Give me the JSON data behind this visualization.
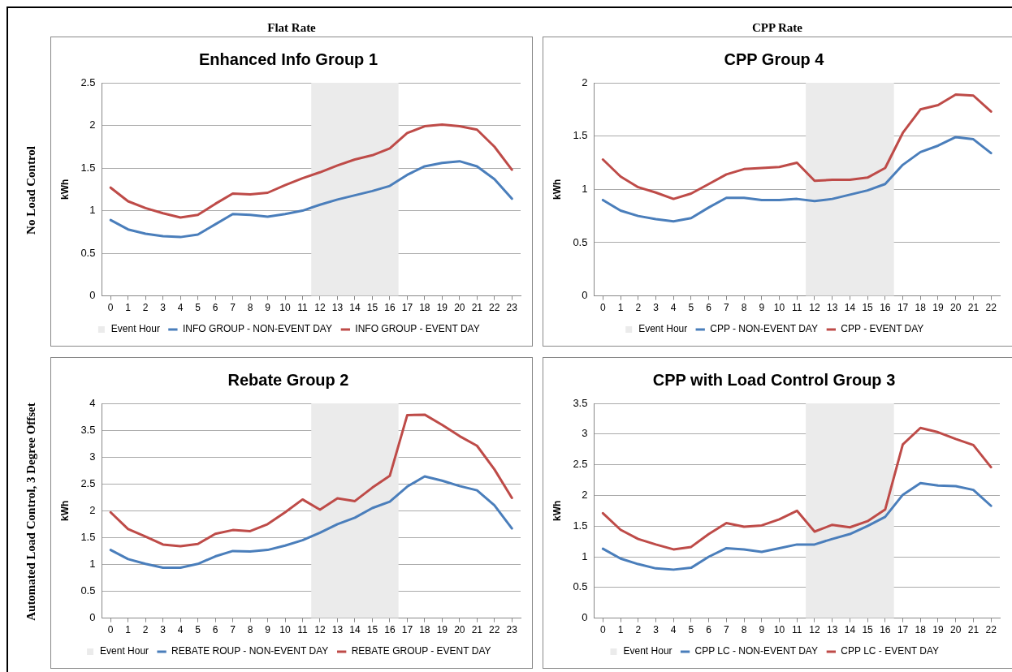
{
  "chart_data": [
    {
      "type": "line",
      "title": "Enhanced Info Group 1",
      "ylabel": "kWh",
      "annotations": [
        "Flat Rate",
        "No Load Control"
      ],
      "x": [
        0,
        1,
        2,
        3,
        4,
        5,
        6,
        7,
        8,
        9,
        10,
        11,
        12,
        13,
        14,
        15,
        16,
        17,
        18,
        19,
        20,
        21,
        22,
        23
      ],
      "xlim": [
        -0.5,
        23.5
      ],
      "xticks": [
        0,
        1,
        2,
        3,
        4,
        5,
        6,
        7,
        8,
        9,
        10,
        11,
        12,
        13,
        14,
        15,
        16,
        17,
        18,
        19,
        20,
        21,
        22,
        23
      ],
      "ylim": [
        0,
        2.5
      ],
      "yticks": [
        0,
        0.5,
        1,
        1.5,
        2,
        2.5
      ],
      "grid": "y",
      "legend": "bottom",
      "bands": [
        {
          "axis": "x",
          "from": 11.5,
          "to": 16.5,
          "label": "Event Hour",
          "color": "#ebebeb"
        }
      ],
      "series": [
        {
          "name": "INFO GROUP - NON-EVENT DAY",
          "color": "#4a7ebb",
          "values": [
            0.89,
            0.78,
            0.73,
            0.7,
            0.69,
            0.72,
            0.84,
            0.96,
            0.95,
            0.93,
            0.96,
            1.0,
            1.07,
            1.13,
            1.18,
            1.23,
            1.29,
            1.42,
            1.52,
            1.56,
            1.58,
            1.52,
            1.37,
            1.14
          ]
        },
        {
          "name": "INFO GROUP - EVENT DAY",
          "color": "#be4b48",
          "values": [
            1.27,
            1.11,
            1.03,
            0.97,
            0.92,
            0.95,
            1.08,
            1.2,
            1.19,
            1.21,
            1.3,
            1.38,
            1.45,
            1.53,
            1.6,
            1.65,
            1.73,
            1.91,
            1.99,
            2.01,
            1.99,
            1.95,
            1.75,
            1.48
          ]
        }
      ]
    },
    {
      "type": "line",
      "title": "CPP Group 4",
      "ylabel": "kWh",
      "annotations": [
        "CPP Rate"
      ],
      "x": [
        0,
        1,
        2,
        3,
        4,
        5,
        6,
        7,
        8,
        9,
        10,
        11,
        12,
        13,
        14,
        15,
        16,
        17,
        18,
        19,
        20,
        21,
        22
      ],
      "xlim": [
        -0.5,
        22.5
      ],
      "xticks": [
        0,
        1,
        2,
        3,
        4,
        5,
        6,
        7,
        8,
        9,
        10,
        11,
        12,
        13,
        14,
        15,
        16,
        17,
        18,
        19,
        20,
        21,
        22
      ],
      "ylim": [
        0,
        2
      ],
      "yticks": [
        0,
        0.5,
        1,
        1.5,
        2
      ],
      "grid": "y",
      "legend": "bottom",
      "bands": [
        {
          "axis": "x",
          "from": 11.5,
          "to": 16.5,
          "label": "Event Hour",
          "color": "#ebebeb"
        }
      ],
      "series": [
        {
          "name": "CPP - NON-EVENT DAY",
          "color": "#4a7ebb",
          "values": [
            0.9,
            0.8,
            0.75,
            0.72,
            0.7,
            0.73,
            0.83,
            0.92,
            0.92,
            0.9,
            0.9,
            0.91,
            0.89,
            0.91,
            0.95,
            0.99,
            1.05,
            1.23,
            1.35,
            1.41,
            1.49,
            1.47,
            1.34
          ]
        },
        {
          "name": "CPP - EVENT DAY",
          "color": "#be4b48",
          "values": [
            1.28,
            1.12,
            1.02,
            0.97,
            0.91,
            0.96,
            1.05,
            1.14,
            1.19,
            1.2,
            1.21,
            1.25,
            1.08,
            1.09,
            1.09,
            1.11,
            1.2,
            1.53,
            1.75,
            1.79,
            1.89,
            1.88,
            1.73
          ]
        }
      ]
    },
    {
      "type": "line",
      "title": "Rebate Group 2",
      "ylabel": "kWh",
      "annotations": [
        "Automated Load Control, 3 Degree Offset"
      ],
      "x": [
        0,
        1,
        2,
        3,
        4,
        5,
        6,
        7,
        8,
        9,
        10,
        11,
        12,
        13,
        14,
        15,
        16,
        17,
        18,
        19,
        20,
        21,
        22,
        23
      ],
      "xlim": [
        -0.5,
        23.5
      ],
      "xticks": [
        0,
        1,
        2,
        3,
        4,
        5,
        6,
        7,
        8,
        9,
        10,
        11,
        12,
        13,
        14,
        15,
        16,
        17,
        18,
        19,
        20,
        21,
        22,
        23
      ],
      "ylim": [
        0,
        4
      ],
      "yticks": [
        0,
        0.5,
        1,
        1.5,
        2,
        2.5,
        3,
        3.5,
        4
      ],
      "grid": "y",
      "legend": "bottom",
      "bands": [
        {
          "axis": "x",
          "from": 11.5,
          "to": 16.5,
          "label": "Event Hour",
          "color": "#ebebeb"
        }
      ],
      "series": [
        {
          "name": "REBATE ROUP - NON-EVENT DAY",
          "color": "#4a7ebb",
          "values": [
            1.27,
            1.1,
            1.01,
            0.94,
            0.94,
            1.01,
            1.15,
            1.25,
            1.24,
            1.27,
            1.35,
            1.45,
            1.59,
            1.75,
            1.87,
            2.05,
            2.17,
            2.45,
            2.64,
            2.56,
            2.46,
            2.38,
            2.1,
            1.67
          ]
        },
        {
          "name": "REBATE GROUP - EVENT DAY",
          "color": "#be4b48",
          "values": [
            1.97,
            1.66,
            1.52,
            1.37,
            1.34,
            1.38,
            1.57,
            1.64,
            1.62,
            1.75,
            1.97,
            2.21,
            2.02,
            2.23,
            2.18,
            2.43,
            2.65,
            3.78,
            3.79,
            3.6,
            3.39,
            3.21,
            2.77,
            2.24
          ]
        }
      ]
    },
    {
      "type": "line",
      "title": "CPP with Load Control Group 3",
      "ylabel": "kWh",
      "x": [
        0,
        1,
        2,
        3,
        4,
        5,
        6,
        7,
        8,
        9,
        10,
        11,
        12,
        13,
        14,
        15,
        16,
        17,
        18,
        19,
        20,
        21,
        22
      ],
      "xlim": [
        -0.5,
        22.5
      ],
      "xticks": [
        0,
        1,
        2,
        3,
        4,
        5,
        6,
        7,
        8,
        9,
        10,
        11,
        12,
        13,
        14,
        15,
        16,
        17,
        18,
        19,
        20,
        21,
        22
      ],
      "ylim": [
        0,
        3.5
      ],
      "yticks": [
        0,
        0.5,
        1,
        1.5,
        2,
        2.5,
        3,
        3.5
      ],
      "grid": "y",
      "legend": "bottom",
      "bands": [
        {
          "axis": "x",
          "from": 11.5,
          "to": 16.5,
          "label": "Event Hour",
          "color": "#ebebeb"
        }
      ],
      "series": [
        {
          "name": "CPP LC - NON-EVENT DAY",
          "color": "#4a7ebb",
          "values": [
            1.13,
            0.97,
            0.88,
            0.81,
            0.79,
            0.82,
            1.0,
            1.14,
            1.12,
            1.08,
            1.14,
            1.2,
            1.2,
            1.29,
            1.37,
            1.5,
            1.65,
            2.01,
            2.2,
            2.16,
            2.15,
            2.09,
            1.83
          ]
        },
        {
          "name": "CPP LC - EVENT DAY",
          "color": "#be4b48",
          "values": [
            1.71,
            1.44,
            1.29,
            1.2,
            1.12,
            1.16,
            1.37,
            1.55,
            1.49,
            1.51,
            1.61,
            1.75,
            1.41,
            1.52,
            1.48,
            1.58,
            1.77,
            2.83,
            3.1,
            3.03,
            2.92,
            2.82,
            2.46
          ]
        }
      ]
    }
  ]
}
